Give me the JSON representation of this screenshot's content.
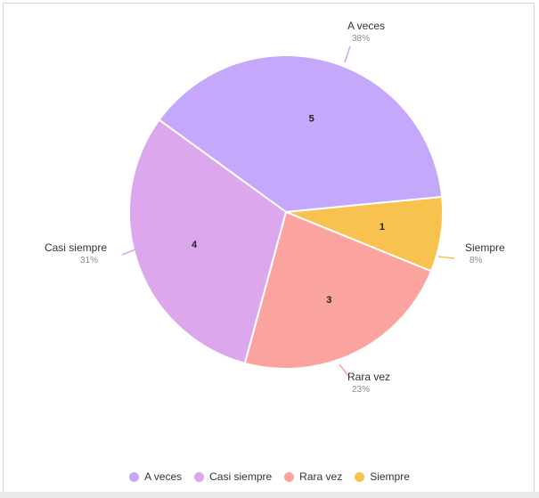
{
  "chart_data": {
    "type": "pie",
    "title": "",
    "slices": [
      {
        "name": "A veces",
        "value": 5,
        "pct_label": "38%",
        "color": "#c5a8fb"
      },
      {
        "name": "Siempre",
        "value": 1,
        "pct_label": "8%",
        "color": "#f8c24e"
      },
      {
        "name": "Rara vez",
        "value": 3,
        "pct_label": "23%",
        "color": "#fba39e"
      },
      {
        "name": "Casi siempre",
        "value": 4,
        "pct_label": "31%",
        "color": "#dca7ec"
      }
    ],
    "legend": {
      "placement": "bottom",
      "items": [
        {
          "name": "A veces",
          "color": "#c5a8fb"
        },
        {
          "name": "Casi siempre",
          "color": "#dca7ec"
        },
        {
          "name": "Rara vez",
          "color": "#fba39e"
        },
        {
          "name": "Siempre",
          "color": "#f8c24e"
        }
      ]
    }
  }
}
